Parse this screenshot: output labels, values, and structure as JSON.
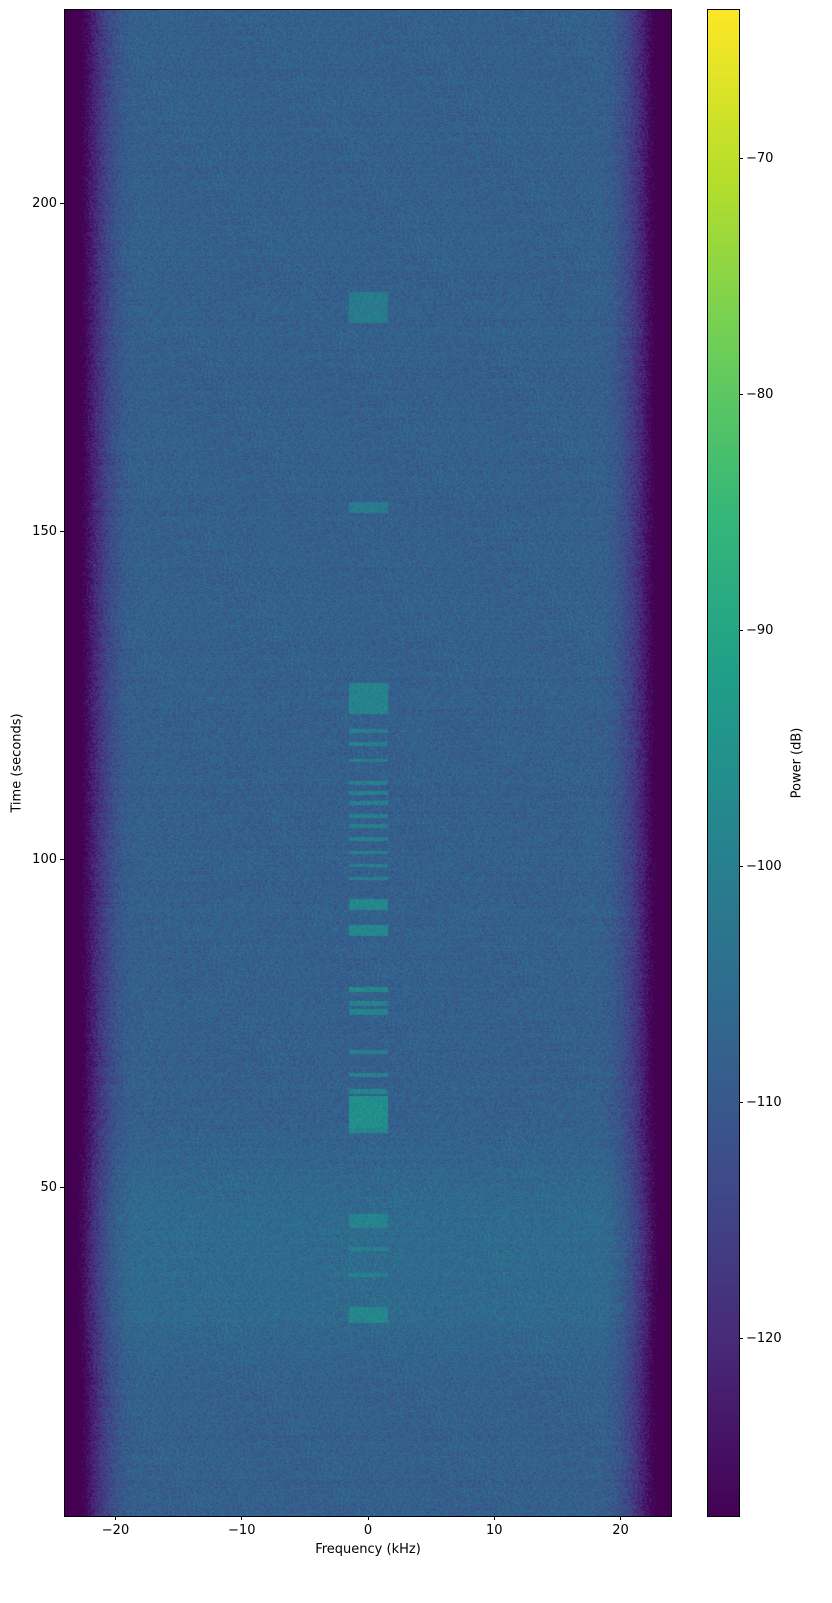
{
  "chart_data": {
    "type": "heatmap",
    "title": "",
    "xlabel": "Frequency (kHz)",
    "ylabel": "Time (seconds)",
    "colorbar_label": "Power (dB)",
    "colormap": "viridis",
    "xlim": [
      -24,
      24
    ],
    "ylim": [
      0,
      229.5
    ],
    "clim": [
      -127.5,
      -63.7
    ],
    "xticks": [
      -20,
      -10,
      0,
      10,
      20
    ],
    "xtick_labels": [
      "−20",
      "−10",
      "0",
      "10",
      "20"
    ],
    "yticks": [
      50,
      100,
      150,
      200
    ],
    "ytick_labels": [
      "50",
      "100",
      "150",
      "200"
    ],
    "cbar_ticks": [
      -70,
      -80,
      -90,
      -100,
      -110,
      -120
    ],
    "cbar_tick_labels": [
      "−70",
      "−80",
      "−90",
      "−100",
      "−110",
      "−120"
    ],
    "background_level_db": -108,
    "band_edge_khz": 22.5,
    "signal_band_khz": [
      -1.5,
      1.6
    ],
    "signal_bursts": [
      {
        "t": [
          29.6,
          31.9
        ],
        "db": -98
      },
      {
        "t": [
          36.5,
          37
        ],
        "db": -100
      },
      {
        "t": [
          40.5,
          41
        ],
        "db": -100
      },
      {
        "t": [
          44,
          46
        ],
        "db": -99
      },
      {
        "t": [
          58.5,
          59.3
        ],
        "db": -98
      },
      {
        "t": [
          59.3,
          64
        ],
        "db": -96
      },
      {
        "t": [
          64.5,
          65
        ],
        "db": -99
      },
      {
        "t": [
          67,
          67.5
        ],
        "db": -100
      },
      {
        "t": [
          70.5,
          71
        ],
        "db": -100
      },
      {
        "t": [
          76.5,
          77.2
        ],
        "db": -99
      },
      {
        "t": [
          77.8,
          78.5
        ],
        "db": -99
      },
      {
        "t": [
          80,
          80.6
        ],
        "db": -98
      },
      {
        "t": [
          88.5,
          90
        ],
        "db": -98
      },
      {
        "t": [
          92.5,
          94
        ],
        "db": -98
      },
      {
        "t": [
          97,
          97.4
        ],
        "db": -100
      },
      {
        "t": [
          99,
          99.4
        ],
        "db": -100
      },
      {
        "t": [
          101,
          101.4
        ],
        "db": -100
      },
      {
        "t": [
          103,
          103.4
        ],
        "db": -100
      },
      {
        "t": [
          105,
          105.4
        ],
        "db": -100
      },
      {
        "t": [
          106.5,
          107
        ],
        "db": -100
      },
      {
        "t": [
          108.5,
          109
        ],
        "db": -100
      },
      {
        "t": [
          110,
          110.5
        ],
        "db": -100
      },
      {
        "t": [
          111.5,
          112
        ],
        "db": -100
      },
      {
        "t": [
          115,
          115.4
        ],
        "db": -100
      },
      {
        "t": [
          117.5,
          118
        ],
        "db": -100
      },
      {
        "t": [
          119.5,
          120
        ],
        "db": -100
      },
      {
        "t": [
          122.4,
          126.9
        ],
        "db": -99
      },
      {
        "t": [
          153,
          154.5
        ],
        "db": -101
      },
      {
        "t": [
          182,
          186.5
        ],
        "db": -101
      }
    ],
    "bands": [
      {
        "t": [
          20,
          60
        ],
        "db_offset": 3
      }
    ]
  }
}
